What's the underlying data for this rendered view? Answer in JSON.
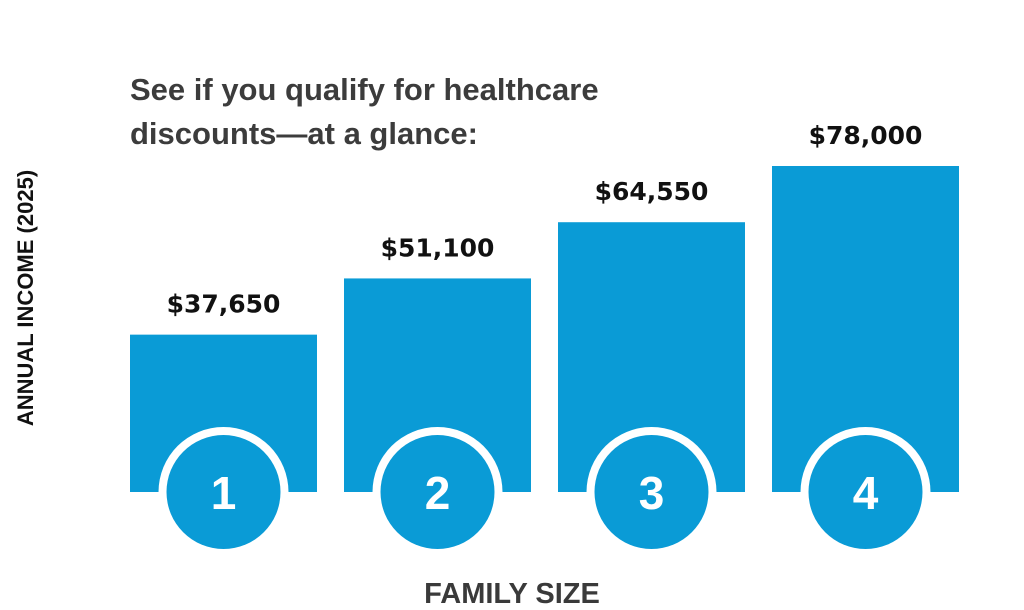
{
  "chart_data": {
    "type": "bar",
    "title": "See if you qualify for healthcare discounts—at a glance:",
    "title_lines": [
      "See if you qualify for healthcare",
      "discounts—at a glance:"
    ],
    "xlabel": "FAMILY SIZE",
    "ylabel": "ANNUAL INCOME (2025)",
    "categories": [
      "1",
      "2",
      "3",
      "4"
    ],
    "values": [
      37650,
      51100,
      64550,
      78000
    ],
    "value_labels": [
      "$37,650",
      "$51,100",
      "$64,550",
      "$78,000"
    ],
    "ylim": [
      0,
      78000
    ],
    "grid": false,
    "legend": "none",
    "colors": {
      "bar": "#0a9bd6",
      "circle": "#0a9bd6",
      "circle_ring": "#ffffff",
      "category_text": "#ffffff"
    }
  }
}
